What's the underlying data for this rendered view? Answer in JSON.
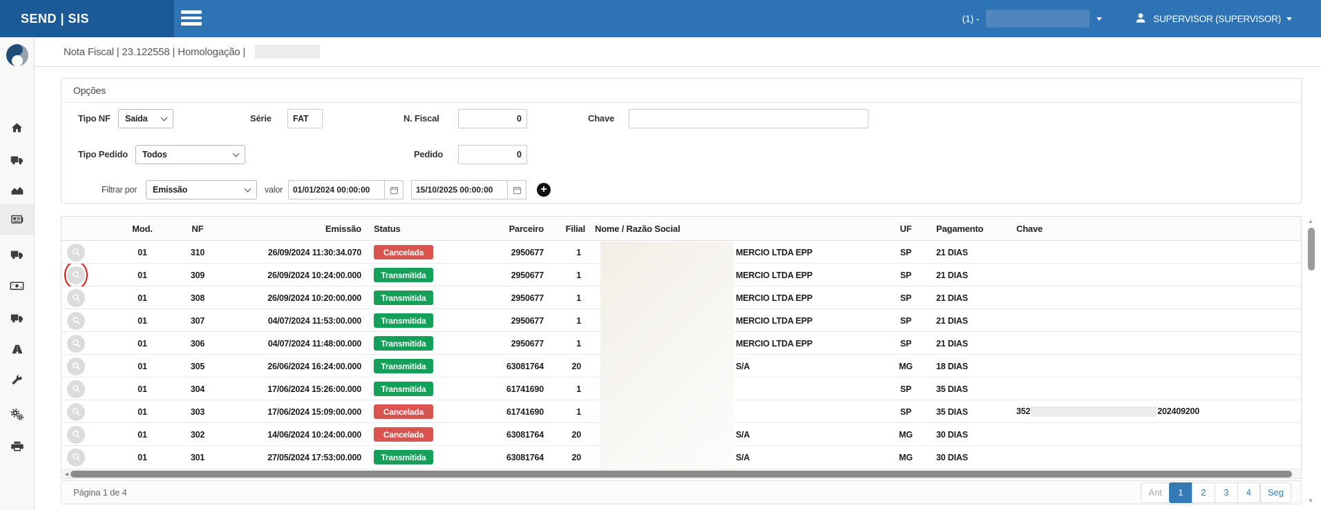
{
  "topbar": {
    "brand": "SEND | SIS",
    "org_prefix": "(1) -",
    "user_name": "SUPERVISOR (SUPERVISOR)"
  },
  "breadcrumb": {
    "text": "Nota Fiscal | 23.122558 | Homologação |"
  },
  "sidebar": {
    "items": [
      {
        "icon": "home"
      },
      {
        "icon": "truck"
      },
      {
        "icon": "area-chart"
      },
      {
        "icon": "newspaper",
        "active": true
      },
      {
        "icon": "truck"
      },
      {
        "icon": "money"
      },
      {
        "icon": "truck"
      },
      {
        "icon": "road"
      },
      {
        "icon": "wrench"
      },
      {
        "icon": "gears"
      },
      {
        "icon": "printer"
      }
    ]
  },
  "filters": {
    "title": "Opções",
    "tipo_nf_label": "Tipo NF",
    "tipo_nf_value": "Saída",
    "serie_label": "Série",
    "serie_value": "FAT",
    "n_fiscal_label": "N. Fiscal",
    "n_fiscal_value": "0",
    "chave_label": "Chave",
    "chave_value": "",
    "tipo_pedido_label": "Tipo Pedido",
    "tipo_pedido_value": "Todos",
    "pedido_label": "Pedido",
    "pedido_value": "0",
    "filtrar_por_label": "Filtrar por",
    "filtrar_por_value": "Emissão",
    "valor_label": "valor",
    "date_from": "01/01/2024 00:00:00",
    "date_to": "15/10/2025 00:00:00"
  },
  "table": {
    "headers": [
      "Mod.",
      "NF",
      "Emissão",
      "Status",
      "Parceiro",
      "Filial",
      "Nome / Razão Social",
      "UF",
      "Pagamento",
      "Chave"
    ],
    "status_colors": {
      "Transmitida": "#15a05a",
      "Cancelada": "#d9534f"
    },
    "rows": [
      {
        "mod": "01",
        "nf": "310",
        "emissao": "26/09/2024 11:30:34.070",
        "status": "Cancelada",
        "parceiro": "2950677",
        "filial": "1",
        "nome": "MERCIO LTDA EPP",
        "uf": "SP",
        "pagamento": "21 DIAS",
        "chave_prefix": "",
        "chave_suffix": "",
        "highlighted": false
      },
      {
        "mod": "01",
        "nf": "309",
        "emissao": "26/09/2024 10:24:00.000",
        "status": "Transmitida",
        "parceiro": "2950677",
        "filial": "1",
        "nome": "MERCIO LTDA EPP",
        "uf": "SP",
        "pagamento": "21 DIAS",
        "chave_prefix": "",
        "chave_suffix": "",
        "highlighted": true
      },
      {
        "mod": "01",
        "nf": "308",
        "emissao": "26/09/2024 10:20:00.000",
        "status": "Transmitida",
        "parceiro": "2950677",
        "filial": "1",
        "nome": "MERCIO LTDA EPP",
        "uf": "SP",
        "pagamento": "21 DIAS",
        "chave_prefix": "",
        "chave_suffix": "",
        "highlighted": false
      },
      {
        "mod": "01",
        "nf": "307",
        "emissao": "04/07/2024 11:53:00.000",
        "status": "Transmitida",
        "parceiro": "2950677",
        "filial": "1",
        "nome": "MERCIO LTDA EPP",
        "uf": "SP",
        "pagamento": "21 DIAS",
        "chave_prefix": "",
        "chave_suffix": "",
        "highlighted": false
      },
      {
        "mod": "01",
        "nf": "306",
        "emissao": "04/07/2024 11:48:00.000",
        "status": "Transmitida",
        "parceiro": "2950677",
        "filial": "1",
        "nome": "MERCIO LTDA EPP",
        "uf": "SP",
        "pagamento": "21 DIAS",
        "chave_prefix": "",
        "chave_suffix": "",
        "highlighted": false
      },
      {
        "mod": "01",
        "nf": "305",
        "emissao": "26/06/2024 16:24:00.000",
        "status": "Transmitida",
        "parceiro": "63081764",
        "filial": "20",
        "nome": "S/A",
        "uf": "MG",
        "pagamento": "18 DIAS",
        "chave_prefix": "",
        "chave_suffix": "",
        "highlighted": false
      },
      {
        "mod": "01",
        "nf": "304",
        "emissao": "17/06/2024 15:26:00.000",
        "status": "Transmitida",
        "parceiro": "61741690",
        "filial": "1",
        "nome": "",
        "uf": "SP",
        "pagamento": "35 DIAS",
        "chave_prefix": "",
        "chave_suffix": "",
        "highlighted": false
      },
      {
        "mod": "01",
        "nf": "303",
        "emissao": "17/06/2024 15:09:00.000",
        "status": "Cancelada",
        "parceiro": "61741690",
        "filial": "1",
        "nome": "",
        "uf": "SP",
        "pagamento": "35 DIAS",
        "chave_prefix": "352",
        "chave_suffix": "202409200",
        "highlighted": false
      },
      {
        "mod": "01",
        "nf": "302",
        "emissao": "14/06/2024 10:24:00.000",
        "status": "Cancelada",
        "parceiro": "63081764",
        "filial": "20",
        "nome": "S/A",
        "uf": "MG",
        "pagamento": "30 DIAS",
        "chave_prefix": "",
        "chave_suffix": "",
        "highlighted": false
      },
      {
        "mod": "01",
        "nf": "301",
        "emissao": "27/05/2024 17:53:00.000",
        "status": "Transmitida",
        "parceiro": "63081764",
        "filial": "20",
        "nome": "S/A",
        "uf": "MG",
        "pagamento": "30 DIAS",
        "chave_prefix": "",
        "chave_suffix": "",
        "highlighted": false
      }
    ]
  },
  "pagination": {
    "summary": "Página 1 de 4",
    "prev_label": "Ant",
    "pages": [
      "1",
      "2",
      "3",
      "4"
    ],
    "active_page": "1",
    "next_label": "Seg"
  },
  "colors": {
    "topbar": "#2e74b5",
    "topbar_brand": "#1b5a96",
    "badge_green": "#15a05a",
    "badge_red": "#d9534f",
    "link_blue": "#337ab7",
    "annotation_red": "#e0140c"
  }
}
